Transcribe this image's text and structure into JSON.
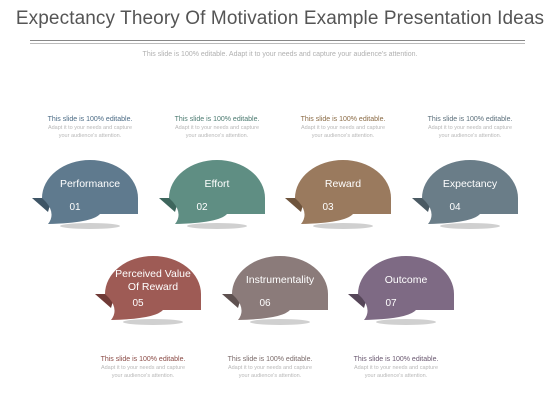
{
  "title": "Expectancy Theory Of Motivation Example Presentation Ideas",
  "subtitle": "This slide is 100% editable. Adapt it to your needs and capture your audience's attention.",
  "note_heading": "This slide is 100% editable.",
  "note_body_1": "Adapt it to your needs and capture",
  "note_body_2": "your audience's attention.",
  "items": [
    {
      "label_1": "Performance",
      "label_2": "",
      "number": "01",
      "color": "#5f7a8e",
      "dark": "#3e5566",
      "note_color": "#4b6b85"
    },
    {
      "label_1": "Effort",
      "label_2": "",
      "number": "02",
      "color": "#5f8e83",
      "dark": "#3e665d",
      "note_color": "#4b7a70"
    },
    {
      "label_1": "Reward",
      "label_2": "",
      "number": "03",
      "color": "#9a7a5e",
      "dark": "#6e543d",
      "note_color": "#8a6a44"
    },
    {
      "label_1": "Expectancy",
      "label_2": "",
      "number": "04",
      "color": "#6a7d88",
      "dark": "#4a5a63",
      "note_color": "#5a6e7a"
    },
    {
      "label_1": "Perceived Value",
      "label_2": "Of Reward",
      "number": "05",
      "color": "#9e5b55",
      "dark": "#703a36",
      "note_color": "#8a4a45"
    },
    {
      "label_1": "Instrumentality",
      "label_2": "",
      "number": "06",
      "color": "#8b7b7a",
      "dark": "#5e5150",
      "note_color": "#7a6a69"
    },
    {
      "label_1": "Outcome",
      "label_2": "",
      "number": "07",
      "color": "#7e6a84",
      "dark": "#564659",
      "note_color": "#6a5870"
    }
  ]
}
